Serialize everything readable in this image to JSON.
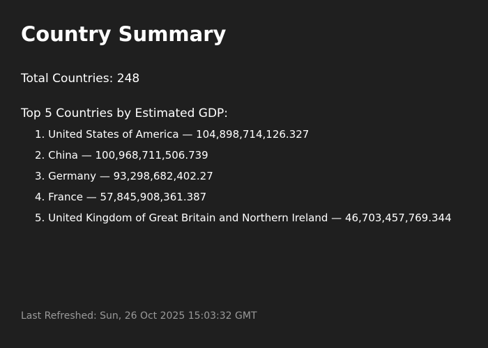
{
  "title": "Country Summary",
  "total_countries": {
    "label": "Total Countries:",
    "value": "248"
  },
  "top_gdp": {
    "heading": "Top 5 Countries by Estimated GDP:",
    "separator": " — ",
    "items": [
      {
        "rank": "1.",
        "country": "United States of America",
        "gdp": "104,898,714,126.327"
      },
      {
        "rank": "2.",
        "country": "China",
        "gdp": "100,968,711,506.739"
      },
      {
        "rank": "3.",
        "country": "Germany",
        "gdp": "93,298,682,402.27"
      },
      {
        "rank": "4.",
        "country": "France",
        "gdp": "57,845,908,361.387"
      },
      {
        "rank": "5.",
        "country": "United Kingdom of Great Britain and Northern Ireland",
        "gdp": "46,703,457,769.344"
      }
    ]
  },
  "footer": {
    "label": "Last Refreshed:",
    "timestamp": "Sun, 26 Oct 2025 15:03:32 GMT"
  },
  "colors": {
    "background": "#1f1f1f",
    "text": "#ffffff",
    "muted_text": "#9a9a9a"
  }
}
